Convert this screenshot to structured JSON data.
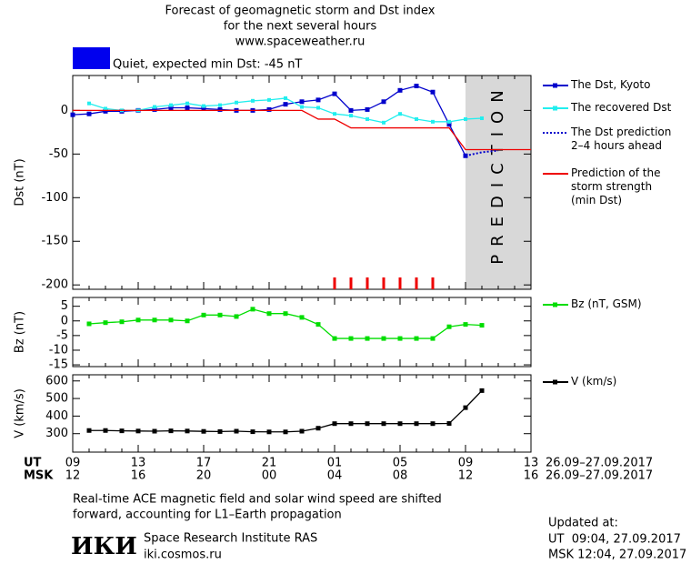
{
  "title_lines": [
    "Forecast of geomagnetic storm and Dst index",
    "for the next several hours",
    "www.spaceweather.ru"
  ],
  "status": {
    "text": "Quiet, expected min Dst: -45 nT",
    "color": "#0000ee"
  },
  "x_axis": {
    "row_label_ut": "UT",
    "row_label_msk": "MSK",
    "date_range": "26.09–27.09.2017",
    "categories_ut": [
      "09",
      null,
      null,
      null,
      "13",
      null,
      null,
      null,
      "17",
      null,
      null,
      null,
      "21",
      null,
      null,
      null,
      "01",
      null,
      null,
      null,
      "05",
      null,
      null,
      null,
      "09",
      null,
      null,
      null,
      "13"
    ],
    "categories_msk": [
      "12",
      null,
      null,
      null,
      "16",
      null,
      null,
      null,
      "20",
      null,
      null,
      null,
      "00",
      null,
      null,
      null,
      "04",
      null,
      null,
      null,
      "08",
      null,
      null,
      null,
      "12",
      null,
      null,
      null,
      "16"
    ]
  },
  "chart_data": [
    {
      "type": "line",
      "ylabel": "Dst (nT)",
      "ylim": [
        -205,
        40
      ],
      "yticks": [
        0,
        -50,
        -100,
        -150,
        -200
      ],
      "prediction_from": 24,
      "prediction_label": "PREDICTION",
      "prediction_color": "#d8d8d8",
      "storm_marks": [
        16,
        17,
        18,
        19,
        20,
        21,
        22
      ],
      "storm_color": "#ee0000",
      "series": [
        {
          "name": "The Dst, Kyoto",
          "color": "#0000cc",
          "marker": "square",
          "dash": false,
          "values": [
            -5,
            -4,
            -1,
            -1,
            0,
            1,
            3,
            3,
            2,
            1,
            0,
            0,
            1,
            7,
            10,
            12,
            19,
            0,
            1,
            10,
            23,
            28,
            21,
            -16,
            -52,
            null,
            null,
            null,
            null
          ]
        },
        {
          "name": "The recovered Dst",
          "color": "#22eeee",
          "marker": "square",
          "dash": false,
          "values": [
            null,
            8,
            2,
            0,
            0,
            4,
            6,
            8,
            5,
            6,
            9,
            11,
            12,
            14,
            4,
            3,
            -4,
            -6,
            -10,
            -14,
            -4,
            -10,
            -13,
            -13,
            -10,
            -9,
            null,
            null,
            null
          ]
        },
        {
          "name": "The Dst prediction\n2–4 hours ahead",
          "color": "#0000cc",
          "marker": "none",
          "dash": true,
          "values": [
            null,
            null,
            null,
            null,
            null,
            null,
            null,
            null,
            null,
            null,
            null,
            null,
            null,
            null,
            null,
            null,
            null,
            null,
            null,
            null,
            null,
            null,
            null,
            null,
            -52,
            -48,
            -46,
            null,
            null
          ]
        },
        {
          "name": "Prediction of the\nstorm strength\n(min Dst)",
          "color": "#ee0000",
          "marker": "none",
          "dash": false,
          "values": [
            0,
            0,
            0,
            0,
            0,
            0,
            0,
            0,
            0,
            0,
            0,
            0,
            0,
            0,
            0,
            -10,
            -10,
            -20,
            -20,
            -20,
            -20,
            -20,
            -20,
            -20,
            -45,
            -45,
            -45,
            -45,
            -45
          ]
        }
      ]
    },
    {
      "type": "line",
      "ylabel": "Bz (nT)",
      "ylim": [
        -15.6,
        8
      ],
      "yticks": [
        5,
        0,
        -5,
        -10,
        -15
      ],
      "series": [
        {
          "name": "Bz (nT, GSM)",
          "color": "#00dd00",
          "marker": "square",
          "dash": false,
          "values": [
            null,
            -1,
            -0.6,
            -0.3,
            0.3,
            0.3,
            0.3,
            0,
            2,
            2,
            1.5,
            4,
            2.5,
            2.5,
            1.2,
            -1.2,
            -6,
            -6,
            -6,
            -6,
            -6,
            -6,
            -6,
            -2,
            -1.2,
            -1.5,
            null,
            null,
            null
          ]
        }
      ]
    },
    {
      "type": "line",
      "ylabel": "V (km/s)",
      "ylim": [
        195,
        635
      ],
      "yticks": [
        600,
        500,
        400,
        300
      ],
      "series": [
        {
          "name": "V (km/s)",
          "color": "#000000",
          "marker": "square",
          "dash": false,
          "values": [
            null,
            318,
            318,
            316,
            315,
            314,
            316,
            315,
            313,
            312,
            314,
            311,
            310,
            310,
            314,
            331,
            357,
            357,
            357,
            357,
            357,
            357,
            357,
            358,
            448,
            545,
            null,
            null,
            null
          ]
        }
      ]
    }
  ],
  "note_lines": [
    "Real-time ACE magnetic field and solar wind speed are shifted",
    "forward, accounting for L1–Earth propagation"
  ],
  "institute": {
    "logo": "ИКИ",
    "name": "Space Research Institute RAS",
    "url": "iki.cosmos.ru"
  },
  "updated": {
    "heading": "Updated at:",
    "ut": "UT  09:04, 27.09.2017",
    "msk": "MSK 12:04, 27.09.2017"
  }
}
